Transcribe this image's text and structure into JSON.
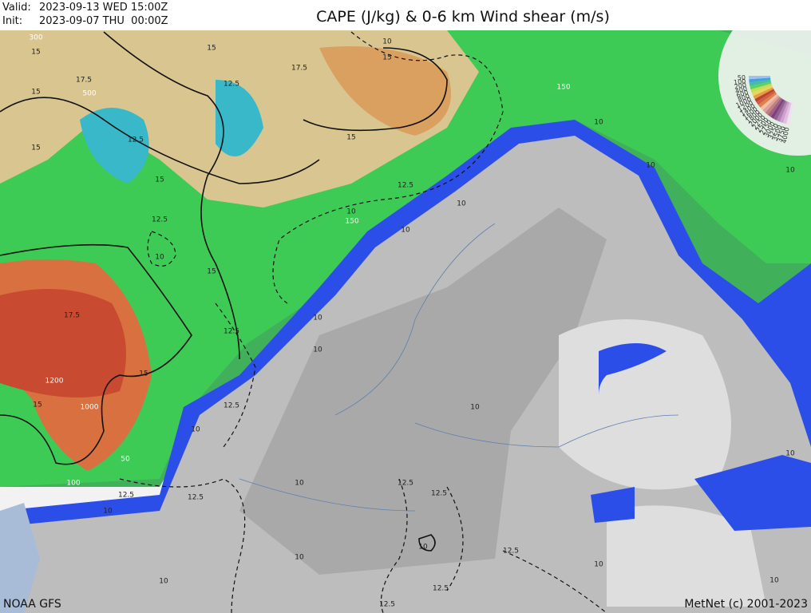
{
  "header": {
    "valid_label": "Valid:",
    "valid": "2023-09-13 WED 15:00Z",
    "init_label": "Init:",
    "init": "2023-09-07 THU  00:00Z",
    "title": "CAPE (J/kg) & 0-6 km Wind shear (m/s)"
  },
  "footer": {
    "source": "NOAA GFS",
    "credit": "MetNet (c) 2001-2023"
  },
  "legend_labels": [
    "4000",
    "3750",
    "3500",
    "3250",
    "3000",
    "2750",
    "2500",
    "2250",
    "2000",
    "1800",
    "1600",
    "1400",
    "1200",
    "1000",
    "800",
    "600",
    "400",
    "200",
    "100",
    "50"
  ],
  "cape_labels": [
    "300",
    "500",
    "150",
    "150",
    "1200",
    "1000",
    "50",
    "100"
  ],
  "shear_labels": [
    "15",
    "15",
    "15",
    "15",
    "15",
    "15",
    "15",
    "15",
    "15",
    "15",
    "17.5",
    "17.5",
    "17.5",
    "12.5",
    "12.5",
    "12.5",
    "12.5",
    "12.5",
    "12.5",
    "12.5",
    "12.5",
    "12.5",
    "12.5",
    "12.5",
    "12.5",
    "12.5",
    "10",
    "10",
    "10",
    "10",
    "10",
    "10",
    "10",
    "10",
    "10",
    "10",
    "10",
    "10",
    "10",
    "10",
    "10",
    "10",
    "10",
    "10",
    "10",
    "10"
  ]
}
